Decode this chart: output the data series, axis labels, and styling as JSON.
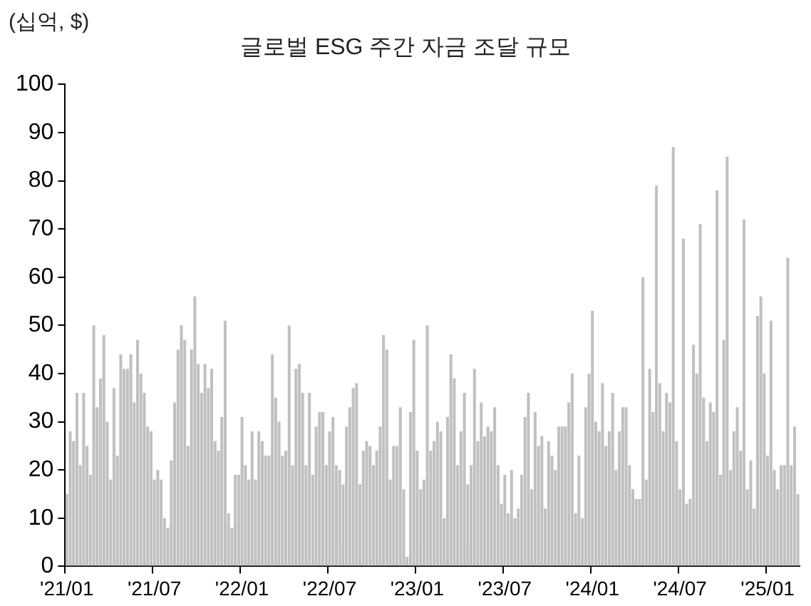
{
  "chart_data": {
    "type": "bar",
    "title": "글로벌 ESG 주간 자금 조달 규모",
    "ylabel": "(십억, $)",
    "categories": [
      "'21/01",
      null,
      null,
      null,
      null,
      null,
      null,
      null,
      null,
      null,
      null,
      null,
      null,
      null,
      null,
      null,
      null,
      null,
      null,
      null,
      null,
      null,
      null,
      null,
      null,
      null,
      "'21/07",
      null,
      null,
      null,
      null,
      null,
      null,
      null,
      null,
      null,
      null,
      null,
      null,
      null,
      null,
      null,
      null,
      null,
      null,
      null,
      null,
      null,
      null,
      null,
      null,
      null,
      "'22/01",
      null,
      null,
      null,
      null,
      null,
      null,
      null,
      null,
      null,
      null,
      null,
      null,
      null,
      null,
      null,
      null,
      null,
      null,
      null,
      null,
      null,
      null,
      null,
      null,
      null,
      "'22/07",
      null,
      null,
      null,
      null,
      null,
      null,
      null,
      null,
      null,
      null,
      null,
      null,
      null,
      null,
      null,
      null,
      null,
      null,
      null,
      null,
      null,
      null,
      null,
      null,
      null,
      "'23/01",
      null,
      null,
      null,
      null,
      null,
      null,
      null,
      null,
      null,
      null,
      null,
      null,
      null,
      null,
      null,
      null,
      null,
      null,
      null,
      null,
      null,
      null,
      null,
      null,
      null,
      "'23/07",
      null,
      null,
      null,
      null,
      null,
      null,
      null,
      null,
      null,
      null,
      null,
      null,
      null,
      null,
      null,
      null,
      null,
      null,
      null,
      null,
      null,
      null,
      null,
      null,
      null,
      "'24/01",
      null,
      null,
      null,
      null,
      null,
      null,
      null,
      null,
      null,
      null,
      null,
      null,
      null,
      null,
      null,
      null,
      null,
      null,
      null,
      null,
      null,
      null,
      null,
      null,
      null,
      "'24/07",
      null,
      null,
      null,
      null,
      null,
      null,
      null,
      null,
      null,
      null,
      null,
      null,
      null,
      null,
      null,
      null,
      null,
      null,
      null,
      null,
      null,
      null,
      null,
      null,
      null,
      "'25/01",
      null,
      null,
      null,
      null,
      null,
      null,
      null,
      null,
      null
    ],
    "values": [
      15,
      28,
      26,
      36,
      21,
      36,
      25,
      19,
      50,
      33,
      39,
      48,
      30,
      18,
      37,
      23,
      44,
      41,
      41,
      44,
      34,
      47,
      40,
      36,
      29,
      28,
      18,
      20,
      18,
      10,
      8,
      22,
      34,
      45,
      50,
      47,
      25,
      45,
      56,
      42,
      36,
      42,
      37,
      41,
      26,
      24,
      31,
      51,
      11,
      8,
      19,
      19,
      31,
      21,
      18,
      28,
      18,
      28,
      26,
      23,
      23,
      44,
      35,
      30,
      23,
      24,
      50,
      21,
      41,
      42,
      36,
      21,
      36,
      19,
      29,
      32,
      32,
      21,
      28,
      31,
      21,
      20,
      17,
      29,
      33,
      37,
      38,
      17,
      24,
      26,
      25,
      21,
      24,
      29,
      48,
      45,
      18,
      25,
      25,
      33,
      16,
      2,
      32,
      47,
      24,
      16,
      18,
      50,
      24,
      26,
      30,
      28,
      10,
      31,
      44,
      39,
      21,
      28,
      36,
      17,
      21,
      41,
      26,
      34,
      27,
      29,
      28,
      33,
      21,
      13,
      19,
      11,
      20,
      10,
      12,
      19,
      31,
      36,
      16,
      32,
      25,
      27,
      12,
      26,
      23,
      20,
      29,
      29,
      29,
      34,
      40,
      11,
      23,
      10,
      33,
      40,
      53,
      30,
      28,
      38,
      25,
      28,
      36,
      20,
      28,
      33,
      33,
      21,
      16,
      14,
      14,
      60,
      18,
      41,
      32,
      79,
      38,
      28,
      36,
      34,
      87,
      26,
      16,
      68,
      13,
      14,
      46,
      40,
      71,
      35,
      26,
      34,
      32,
      78,
      19,
      47,
      85,
      20,
      28,
      33,
      24,
      72,
      16,
      22,
      12,
      52,
      56,
      40,
      23,
      51,
      20,
      16,
      21,
      21,
      64,
      21,
      29,
      15
    ],
    "color": "#c0c0c0",
    "ylim": [
      0,
      100
    ],
    "yticks": [
      0,
      10,
      20,
      30,
      40,
      50,
      60,
      70,
      80,
      90,
      100
    ],
    "grid": false,
    "legend": false
  }
}
